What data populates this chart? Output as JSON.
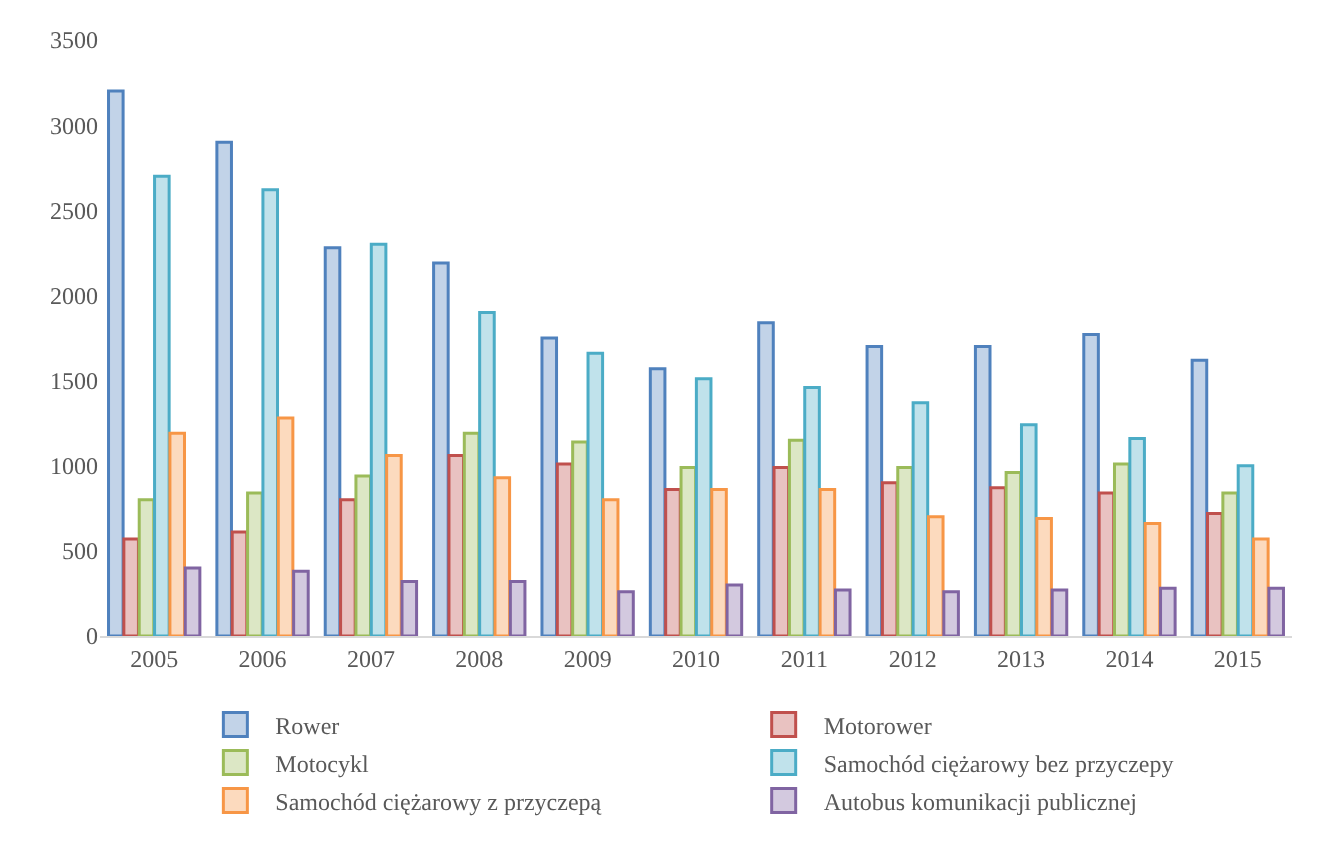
{
  "chart_data": {
    "type": "bar",
    "categories": [
      "2005",
      "2006",
      "2007",
      "2008",
      "2009",
      "2010",
      "2011",
      "2012",
      "2013",
      "2014",
      "2015"
    ],
    "series": [
      {
        "name": "Rower",
        "color": "#4f81bd",
        "values": [
          3200,
          2900,
          2280,
          2190,
          1750,
          1570,
          1840,
          1700,
          1700,
          1770,
          1620
        ]
      },
      {
        "name": "Motorower",
        "color": "#c0504d",
        "values": [
          570,
          610,
          800,
          1060,
          1010,
          860,
          990,
          900,
          870,
          840,
          720
        ]
      },
      {
        "name": "Motocykl",
        "color": "#9bbb59",
        "values": [
          800,
          840,
          940,
          1190,
          1140,
          990,
          1150,
          990,
          960,
          1010,
          840
        ]
      },
      {
        "name": "Samochód ciężarowy bez przyczepy",
        "color": "#4bacc6",
        "values": [
          2700,
          2620,
          2300,
          1900,
          1660,
          1510,
          1460,
          1370,
          1240,
          1160,
          1000
        ]
      },
      {
        "name": "Samochód ciężarowy z przyczepą",
        "color": "#f79646",
        "values": [
          1190,
          1280,
          1060,
          930,
          800,
          860,
          860,
          700,
          690,
          660,
          570
        ]
      },
      {
        "name": "Autobus komunikacji publicznej",
        "color": "#8064a2",
        "values": [
          400,
          380,
          320,
          320,
          260,
          300,
          270,
          260,
          270,
          280,
          280
        ]
      }
    ],
    "ylim": [
      0,
      3500
    ],
    "yticks": [
      0,
      500,
      1000,
      1500,
      2000,
      2500,
      3000,
      3500
    ],
    "grid": false,
    "legend": "bottom"
  }
}
